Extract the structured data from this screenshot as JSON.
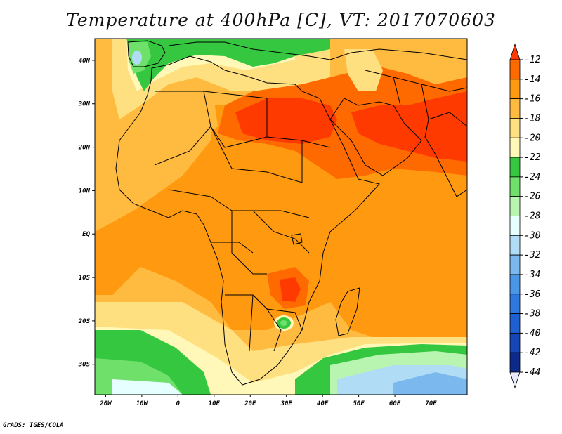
{
  "title": "Temperature at 400hPa [C], VT: 2017070603",
  "credit": "GrADS: IGES/COLA",
  "map": {
    "lon_range": [
      -23,
      80
    ],
    "lat_range": [
      -37,
      45
    ],
    "lon_ticks": [
      {
        "value": -20,
        "label": "20W"
      },
      {
        "value": -10,
        "label": "10W"
      },
      {
        "value": 0,
        "label": "0"
      },
      {
        "value": 10,
        "label": "10E"
      },
      {
        "value": 20,
        "label": "20E"
      },
      {
        "value": 30,
        "label": "30E"
      },
      {
        "value": 40,
        "label": "40E"
      },
      {
        "value": 50,
        "label": "50E"
      },
      {
        "value": 60,
        "label": "60E"
      },
      {
        "value": 70,
        "label": "70E"
      }
    ],
    "lat_ticks": [
      {
        "value": 40,
        "label": "40N"
      },
      {
        "value": 30,
        "label": "30N"
      },
      {
        "value": 20,
        "label": "20N"
      },
      {
        "value": 10,
        "label": "10N"
      },
      {
        "value": 0,
        "label": "EQ"
      },
      {
        "value": -10,
        "label": "10S"
      },
      {
        "value": -20,
        "label": "20S"
      },
      {
        "value": -30,
        "label": "30S"
      }
    ]
  },
  "colorbar": {
    "levels": [
      {
        "label": "-12",
        "color": "#ff3a00"
      },
      {
        "label": "-14",
        "color": "#ff6a00"
      },
      {
        "label": "-16",
        "color": "#ff9a10"
      },
      {
        "label": "-18",
        "color": "#ffbb40"
      },
      {
        "label": "-20",
        "color": "#ffe080"
      },
      {
        "label": "-22",
        "color": "#fff8b8"
      },
      {
        "label": "-24",
        "color": "#35c740"
      },
      {
        "label": "-26",
        "color": "#6fe06a"
      },
      {
        "label": "-28",
        "color": "#b8f5b0"
      },
      {
        "label": "-30",
        "color": "#e6ffff"
      },
      {
        "label": "-32",
        "color": "#b0dcf5"
      },
      {
        "label": "-34",
        "color": "#7ab8ee"
      },
      {
        "label": "-36",
        "color": "#4a97e6"
      },
      {
        "label": "-38",
        "color": "#2f79de"
      },
      {
        "label": "-40",
        "color": "#1e5fd2"
      },
      {
        "label": "-42",
        "color": "#1446b8"
      },
      {
        "label": "-44",
        "color": "#0c2a8a"
      }
    ],
    "top_color": "#ff3a00",
    "bottom_color": "#e8e8ff"
  }
}
